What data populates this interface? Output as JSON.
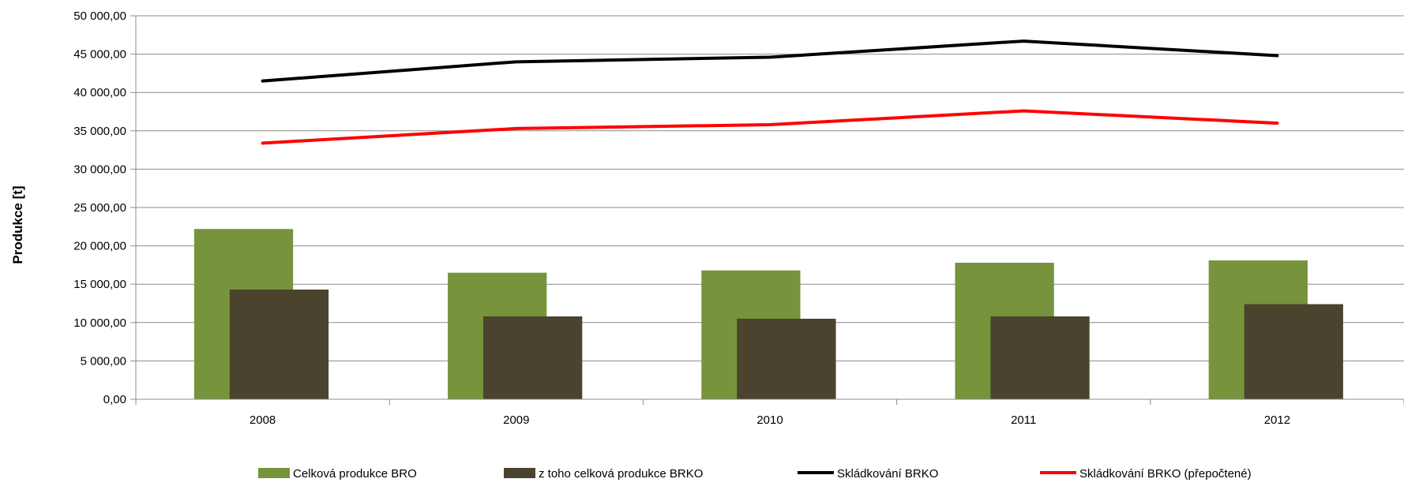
{
  "chart_data": {
    "type": "bar",
    "categories": [
      "2008",
      "2009",
      "2010",
      "2011",
      "2012"
    ],
    "ylabel": "Produkce [t]",
    "xlabel": "",
    "ylim": [
      0,
      50000
    ],
    "yticks": [
      0,
      5000,
      10000,
      15000,
      20000,
      25000,
      30000,
      35000,
      40000,
      45000,
      50000
    ],
    "ytick_labels": [
      "0,00",
      "5 000,00",
      "10 000,00",
      "15 000,00",
      "20 000,00",
      "25 000,00",
      "30 000,00",
      "35 000,00",
      "40 000,00",
      "45 000,00",
      "50 000,00"
    ],
    "grid": true,
    "legend_position": "bottom",
    "series": [
      {
        "name": "Celková produkce BRO",
        "kind": "bar",
        "color": "#77933c",
        "values": [
          22200,
          16500,
          16800,
          17800,
          18100
        ]
      },
      {
        "name": "z toho celková produkce BRKO",
        "kind": "bar",
        "color": "#4a432d",
        "values": [
          14300,
          10800,
          10500,
          10800,
          12400
        ]
      },
      {
        "name": "Skládkování BRKO",
        "kind": "line",
        "color": "#000000",
        "values": [
          41500,
          44000,
          44600,
          46700,
          44800
        ]
      },
      {
        "name": "Skládkování BRKO (přepočtené)",
        "kind": "line",
        "color": "#ff0000",
        "values": [
          33400,
          35300,
          35800,
          37600,
          36000
        ]
      }
    ]
  }
}
